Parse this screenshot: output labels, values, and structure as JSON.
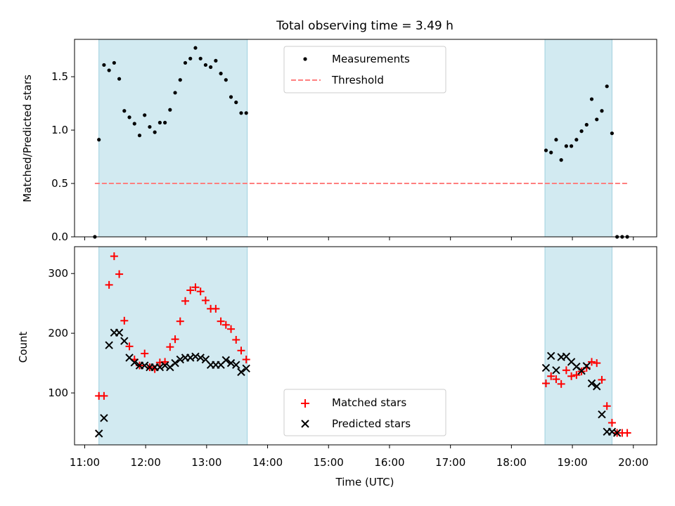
{
  "figure": {
    "title": "Total observing time = 3.49 h"
  },
  "chart_data": [
    {
      "type": "scatter",
      "panel": "top",
      "title": "Total observing time = 3.49 h",
      "ylabel": "Matched/Predicted stars",
      "xlabel": "",
      "xlim": [
        "10:50",
        "20:23"
      ],
      "ylim": [
        0,
        1.85
      ],
      "yticks": [
        0.0,
        0.5,
        1.0,
        1.5
      ],
      "ytick_labels": [
        "0.0",
        "0.5",
        "1.0",
        "1.5"
      ],
      "grid": false,
      "legend": "top-center",
      "observing_windows": [
        [
          "11:14",
          "13:40"
        ],
        [
          "18:33",
          "19:39"
        ]
      ],
      "series": [
        {
          "name": "Measurements",
          "style": "dot",
          "color": "#000000",
          "x": [
            "11:10",
            "11:14",
            "11:19",
            "11:24",
            "11:29",
            "11:34",
            "11:39",
            "11:44",
            "11:49",
            "11:54",
            "11:59",
            "12:04",
            "12:09",
            "12:14",
            "12:19",
            "12:24",
            "12:29",
            "12:34",
            "12:39",
            "12:44",
            "12:49",
            "12:54",
            "12:59",
            "13:04",
            "13:09",
            "13:14",
            "13:19",
            "13:24",
            "13:29",
            "13:34",
            "13:39",
            "18:34",
            "18:39",
            "18:44",
            "18:49",
            "18:54",
            "18:59",
            "19:04",
            "19:09",
            "19:14",
            "19:19",
            "19:24",
            "19:29",
            "19:34",
            "19:39",
            "19:44",
            "19:49",
            "19:54"
          ],
          "y": [
            0.0,
            0.91,
            1.61,
            1.56,
            1.63,
            1.48,
            1.18,
            1.12,
            1.06,
            0.95,
            1.14,
            1.03,
            0.98,
            1.07,
            1.07,
            1.19,
            1.35,
            1.47,
            1.63,
            1.67,
            1.77,
            1.67,
            1.61,
            1.59,
            1.65,
            1.53,
            1.47,
            1.31,
            1.26,
            1.16,
            1.16,
            0.81,
            0.79,
            0.91,
            0.72,
            0.85,
            0.85,
            0.91,
            0.99,
            1.05,
            1.29,
            1.1,
            1.18,
            1.41,
            0.97,
            0.0,
            0.0,
            0.0
          ]
        },
        {
          "name": "Threshold",
          "style": "dashed",
          "color": "#ff7f7f",
          "x": [
            "11:10",
            "19:54"
          ],
          "y": [
            0.5,
            0.5
          ]
        }
      ]
    },
    {
      "type": "scatter",
      "panel": "bottom",
      "ylabel": "Count",
      "xlabel": "Time (UTC)",
      "xlim": [
        "10:50",
        "20:23"
      ],
      "ylim": [
        13,
        345
      ],
      "yticks": [
        100,
        200,
        300
      ],
      "xticks": [
        "11:00",
        "12:00",
        "13:00",
        "14:00",
        "15:00",
        "16:00",
        "17:00",
        "18:00",
        "19:00",
        "20:00"
      ],
      "grid": false,
      "legend": "bottom-center",
      "observing_windows": [
        [
          "11:14",
          "13:40"
        ],
        [
          "18:33",
          "19:39"
        ]
      ],
      "series": [
        {
          "name": "Matched stars",
          "style": "plus",
          "color": "#ff0000",
          "x": [
            "11:14",
            "11:19",
            "11:24",
            "11:29",
            "11:34",
            "11:39",
            "11:44",
            "11:49",
            "11:54",
            "11:59",
            "12:04",
            "12:09",
            "12:14",
            "12:19",
            "12:24",
            "12:29",
            "12:34",
            "12:39",
            "12:44",
            "12:49",
            "12:54",
            "12:59",
            "13:04",
            "13:09",
            "13:14",
            "13:19",
            "13:24",
            "13:29",
            "13:34",
            "13:39",
            "18:34",
            "18:39",
            "18:44",
            "18:49",
            "18:54",
            "18:59",
            "19:04",
            "19:09",
            "19:14",
            "19:19",
            "19:24",
            "19:29",
            "19:34",
            "19:39",
            "19:44",
            "19:49",
            "19:54"
          ],
          "y": [
            95,
            95,
            281,
            329,
            299,
            221,
            178,
            156,
            146,
            166,
            143,
            140,
            151,
            152,
            177,
            190,
            220,
            254,
            272,
            277,
            270,
            255,
            241,
            241,
            220,
            214,
            207,
            189,
            171,
            156,
            116,
            128,
            123,
            115,
            138,
            128,
            130,
            136,
            142,
            152,
            150,
            122,
            78,
            50,
            33,
            33,
            33
          ]
        },
        {
          "name": "Predicted stars",
          "style": "x",
          "color": "#000000",
          "x": [
            "11:14",
            "11:19",
            "11:24",
            "11:29",
            "11:34",
            "11:39",
            "11:44",
            "11:49",
            "11:54",
            "11:59",
            "12:04",
            "12:09",
            "12:14",
            "12:19",
            "12:24",
            "12:29",
            "12:34",
            "12:39",
            "12:44",
            "12:49",
            "12:54",
            "12:59",
            "13:04",
            "13:09",
            "13:14",
            "13:19",
            "13:24",
            "13:29",
            "13:34",
            "13:39",
            "18:34",
            "18:39",
            "18:44",
            "18:49",
            "18:54",
            "18:59",
            "19:04",
            "19:09",
            "19:14",
            "19:19",
            "19:24",
            "19:29",
            "19:34",
            "19:39",
            "19:44"
          ],
          "y": [
            32,
            58,
            180,
            201,
            201,
            187,
            159,
            151,
            146,
            146,
            143,
            143,
            143,
            146,
            143,
            150,
            156,
            159,
            159,
            161,
            159,
            156,
            147,
            147,
            147,
            155,
            150,
            147,
            135,
            141,
            142,
            162,
            138,
            160,
            161,
            152,
            144,
            137,
            145,
            116,
            111,
            64,
            35,
            35,
            33
          ]
        }
      ]
    }
  ],
  "colors": {
    "window_fill": "#add8e6",
    "window_edge": "#9fcfde",
    "threshold": "#ff7f7f",
    "matched": "#ff0000",
    "predicted": "#000000"
  }
}
